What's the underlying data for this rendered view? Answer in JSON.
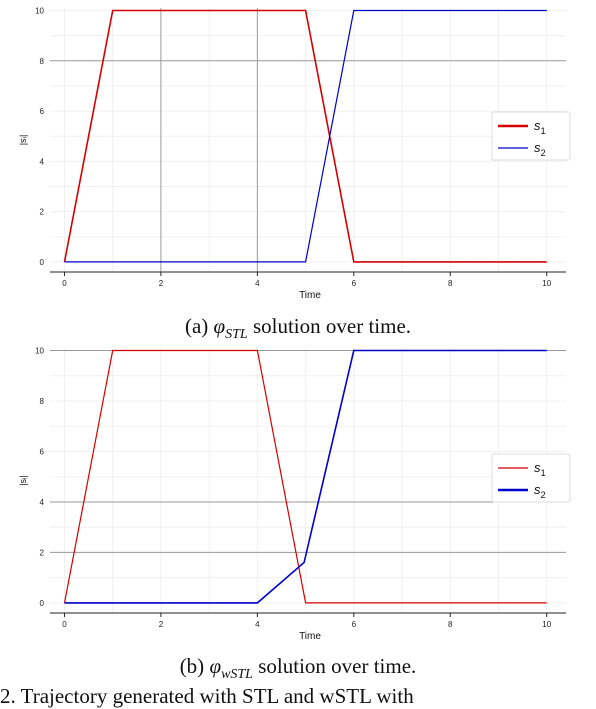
{
  "chart_data": [
    {
      "type": "line",
      "xlabel": "Time",
      "ylabel": "|s_i|",
      "xlim": [
        -0.3,
        10.4
      ],
      "ylim": [
        -0.4,
        10.1
      ],
      "xticks": [
        0,
        2,
        4,
        6,
        8,
        10
      ],
      "yticks": [
        0,
        2,
        4,
        6,
        8,
        10
      ],
      "grid_vertical_major": [
        2,
        4
      ],
      "grid_horizontal_major": [
        8
      ],
      "legend_position": "right",
      "series": [
        {
          "name": "s_1",
          "color": "#d40000",
          "x": [
            0,
            1,
            5,
            6,
            10
          ],
          "y": [
            0,
            10,
            10,
            0,
            0
          ]
        },
        {
          "name": "s_2",
          "color": "#0000cc",
          "x": [
            0,
            5,
            6,
            10
          ],
          "y": [
            0,
            0,
            10,
            10
          ]
        }
      ]
    },
    {
      "type": "line",
      "xlabel": "Time",
      "ylabel": "|s_i|",
      "xlim": [
        -0.3,
        10.4
      ],
      "ylim": [
        -0.4,
        10.1
      ],
      "xticks": [
        0,
        2,
        4,
        6,
        8,
        10
      ],
      "yticks": [
        0,
        2,
        4,
        6,
        8,
        10
      ],
      "grid_vertical_major": [],
      "grid_horizontal_major": [
        2,
        4,
        10
      ],
      "legend_position": "right",
      "series": [
        {
          "name": "s_1",
          "color": "#d40000",
          "x": [
            0,
            1,
            4,
            5,
            10
          ],
          "y": [
            0,
            10,
            10,
            0,
            0
          ]
        },
        {
          "name": "s_2",
          "color": "#0000cc",
          "x": [
            0,
            4,
            4.97,
            6,
            10
          ],
          "y": [
            0,
            0,
            1.6,
            10,
            10
          ]
        }
      ]
    }
  ],
  "captions": {
    "a_prefix": "(a) ",
    "a_symbol": "φ",
    "a_sub": "STL",
    "a_suffix": " solution over time.",
    "b_prefix": "(b) ",
    "b_symbol": "φ",
    "b_sub": "wSTL",
    "b_suffix": " solution over time."
  },
  "bottom_text": "2.  Trajectory generated with STL and wSTL with"
}
